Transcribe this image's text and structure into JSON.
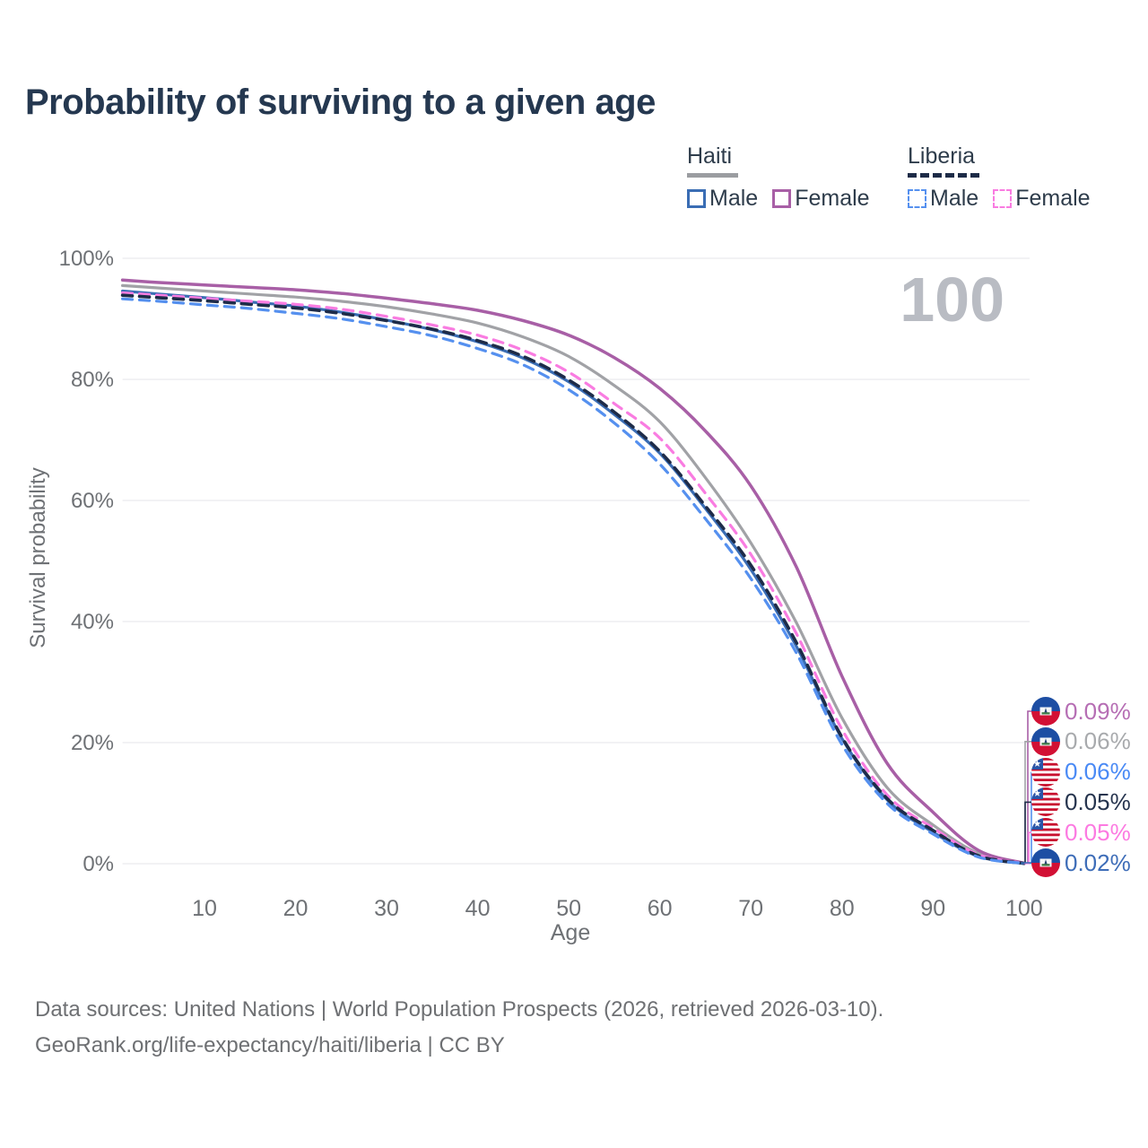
{
  "title": "Probability of surviving to a given age",
  "watermark": "100",
  "legend": {
    "groups": [
      {
        "name": "Haiti",
        "line_style": "solid",
        "underline_color": "#9b9da1",
        "items": [
          {
            "label": "Male",
            "color": "#3a6db4",
            "dashed": false
          },
          {
            "label": "Female",
            "color": "#a85fa6",
            "dashed": false
          }
        ]
      },
      {
        "name": "Liberia",
        "line_style": "dashed",
        "underline_color": "#1d2b47",
        "items": [
          {
            "label": "Male",
            "color": "#5590ef",
            "dashed": true
          },
          {
            "label": "Female",
            "color": "#f97ce1",
            "dashed": true
          }
        ]
      }
    ]
  },
  "chart_data": {
    "type": "line",
    "title": "Probability of surviving to a given age",
    "xlabel": "Age",
    "ylabel": "Survival probability",
    "xlim": [
      1,
      100
    ],
    "ylim": [
      0,
      100
    ],
    "x_ticks": [
      10,
      20,
      30,
      40,
      50,
      60,
      70,
      80,
      90,
      100
    ],
    "y_ticks": [
      0,
      20,
      40,
      60,
      80,
      100
    ],
    "y_tick_suffix": "%",
    "grid": "horizontal-only",
    "gridline_color": "#ebebed",
    "axis_text_color": "#6e7175",
    "x": [
      1,
      5,
      10,
      15,
      20,
      25,
      30,
      35,
      40,
      45,
      50,
      55,
      60,
      65,
      70,
      75,
      80,
      85,
      90,
      95,
      100
    ],
    "series": [
      {
        "key": "haiti_total",
        "name": "Haiti — Total",
        "country": "Haiti",
        "sex": "total",
        "color": "#a1a2a6",
        "dashed": false,
        "width": 3.2,
        "values": [
          95.5,
          95.1,
          94.6,
          94.1,
          93.6,
          92.9,
          92.0,
          90.8,
          89.3,
          87.0,
          83.8,
          79.0,
          73.0,
          63.8,
          53.0,
          39.8,
          24.1,
          12.5,
          6.4,
          1.7,
          0.06
        ]
      },
      {
        "key": "haiti_female",
        "name": "Haiti — Female",
        "country": "Haiti",
        "sex": "female",
        "color": "#a85fa6",
        "dashed": false,
        "width": 3.5,
        "values": [
          96.4,
          96.0,
          95.6,
          95.2,
          94.8,
          94.2,
          93.4,
          92.5,
          91.4,
          89.7,
          87.3,
          83.6,
          78.5,
          71.5,
          62.4,
          49.0,
          31.0,
          16.5,
          8.5,
          2.2,
          0.09
        ]
      },
      {
        "key": "haiti_male",
        "name": "Haiti — Male",
        "country": "Haiti",
        "sex": "male",
        "color": "#3a6db4",
        "dashed": false,
        "width": 3.2,
        "values": [
          94.6,
          94.1,
          93.5,
          92.8,
          92.1,
          91.1,
          89.8,
          88.2,
          86.2,
          83.5,
          79.6,
          74.2,
          67.8,
          58.7,
          48.6,
          35.9,
          20.7,
          10.5,
          5.2,
          1.2,
          0.02
        ]
      },
      {
        "key": "liberia_female",
        "name": "Liberia — Female",
        "country": "Liberia",
        "sex": "female",
        "color": "#f97ce1",
        "dashed": true,
        "width": 3.2,
        "values": [
          94.3,
          93.9,
          93.4,
          92.9,
          92.4,
          91.6,
          90.4,
          89.0,
          87.3,
          84.8,
          81.2,
          76.0,
          70.3,
          61.2,
          51.1,
          38.0,
          22.2,
          11.3,
          5.9,
          1.5,
          0.05
        ]
      },
      {
        "key": "liberia_total",
        "name": "Liberia — Total",
        "country": "Liberia",
        "sex": "total",
        "color": "#1e2c49",
        "dashed": true,
        "width": 3.6,
        "values": [
          93.9,
          93.5,
          93.0,
          92.4,
          91.8,
          90.9,
          89.7,
          88.3,
          86.4,
          83.8,
          79.9,
          74.6,
          68.1,
          59.1,
          49.3,
          36.5,
          20.9,
          10.7,
          5.5,
          1.3,
          0.05
        ]
      },
      {
        "key": "liberia_male",
        "name": "Liberia — Male",
        "country": "Liberia",
        "sex": "male",
        "color": "#5590ef",
        "dashed": true,
        "width": 3.2,
        "values": [
          93.3,
          92.9,
          92.3,
          91.7,
          90.9,
          90.0,
          88.7,
          87.2,
          85.1,
          82.4,
          78.3,
          72.8,
          66.0,
          57.0,
          47.1,
          34.8,
          19.7,
          9.9,
          4.9,
          1.1,
          0.06
        ]
      }
    ],
    "end_labels": [
      {
        "flag": "haiti",
        "series": "haiti_female",
        "value": "0.09%",
        "color": "#b66eb4"
      },
      {
        "flag": "haiti",
        "series": "haiti_total",
        "value": "0.06%",
        "color": "#a8aaad"
      },
      {
        "flag": "liberia",
        "series": "liberia_male",
        "value": "0.06%",
        "color": "#4a8af5"
      },
      {
        "flag": "liberia",
        "series": "liberia_total",
        "value": "0.05%",
        "color": "#26344e"
      },
      {
        "flag": "liberia",
        "series": "liberia_female",
        "value": "0.05%",
        "color": "#fc7ae1"
      },
      {
        "flag": "haiti",
        "series": "haiti_male",
        "value": "0.02%",
        "color": "#3e6db8"
      }
    ]
  },
  "footer": {
    "line1": "Data sources: United Nations | World Population Prospects (2026, retrieved 2026-03-10).",
    "line2": "GeoRank.org/life-expectancy/haiti/liberia | CC BY"
  }
}
